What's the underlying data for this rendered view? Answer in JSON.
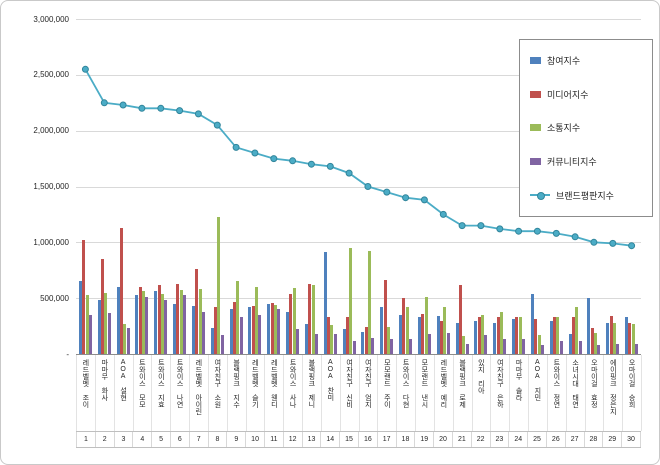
{
  "page": {
    "background": "#ffffff",
    "border_color": "#c9c9c9"
  },
  "chart_data": {
    "type": "bar",
    "title": "",
    "xlabel": "",
    "ylabel": "",
    "ylim": [
      0,
      3000000
    ],
    "ytick_interval": 500000,
    "ytick_labels": [
      "-",
      "500,000",
      "1,000,000",
      "1,500,000",
      "2,000,000",
      "2,500,000",
      "3,000,000"
    ],
    "grid": true,
    "legend_position": "top-right",
    "categories": [
      "레드벨벳 조이",
      "마마무 화사",
      "AOA 설현",
      "트와이스 모모",
      "트와이스 지효",
      "트와이스 나연",
      "레드벨벳 아이린",
      "여자친구 소원",
      "블랙핑크 지수",
      "레드벨벳 슬기",
      "레드벨벳 웬디",
      "트와이스 사나",
      "블랙핑크 제니",
      "AOA 찬미",
      "여자친구 신비",
      "여자친구 엄지",
      "모모랜드 주이",
      "트와이스 다현",
      "모모랜드 낸시",
      "레드벨벳 예리",
      "블랙핑크 로제",
      "있지 리아",
      "여자친구 은하",
      "마마무 솔라",
      "AOA 지민",
      "트와이스 정연",
      "소녀시대 태연",
      "오마이걸 효정",
      "에이핑크 정은지",
      "오마이걸 승희"
    ],
    "ranks": [
      "1",
      "2",
      "3",
      "4",
      "5",
      "6",
      "7",
      "8",
      "9",
      "10",
      "11",
      "12",
      "13",
      "14",
      "15",
      "16",
      "17",
      "18",
      "19",
      "20",
      "21",
      "22",
      "23",
      "24",
      "25",
      "26",
      "27",
      "28",
      "29",
      "30"
    ],
    "series": [
      {
        "name": "참여지수",
        "type": "bar",
        "color": "#4F81BD",
        "values": [
          650000,
          480000,
          600000,
          530000,
          560000,
          450000,
          430000,
          230000,
          400000,
          420000,
          450000,
          380000,
          270000,
          910000,
          220000,
          200000,
          420000,
          350000,
          330000,
          340000,
          280000,
          300000,
          280000,
          310000,
          540000,
          300000,
          180000,
          500000,
          280000,
          330000
        ]
      },
      {
        "name": "미디어지수",
        "type": "bar",
        "color": "#C0504D",
        "values": [
          1020000,
          850000,
          1130000,
          600000,
          620000,
          630000,
          760000,
          420000,
          470000,
          430000,
          460000,
          540000,
          630000,
          330000,
          330000,
          240000,
          660000,
          500000,
          360000,
          300000,
          620000,
          330000,
          330000,
          330000,
          310000,
          330000,
          330000,
          230000,
          340000,
          280000
        ]
      },
      {
        "name": "소통지수",
        "type": "bar",
        "color": "#9BBB59",
        "values": [
          530000,
          550000,
          270000,
          560000,
          540000,
          570000,
          580000,
          1230000,
          650000,
          600000,
          440000,
          590000,
          620000,
          260000,
          950000,
          920000,
          240000,
          420000,
          510000,
          420000,
          160000,
          350000,
          380000,
          330000,
          170000,
          330000,
          420000,
          190000,
          280000,
          270000
        ]
      },
      {
        "name": "커뮤니티지수",
        "type": "bar",
        "color": "#8064A2",
        "values": [
          350000,
          370000,
          230000,
          510000,
          480000,
          530000,
          380000,
          170000,
          330000,
          350000,
          400000,
          220000,
          180000,
          180000,
          120000,
          140000,
          130000,
          130000,
          180000,
          190000,
          90000,
          170000,
          130000,
          130000,
          80000,
          120000,
          120000,
          80000,
          90000,
          90000
        ]
      },
      {
        "name": "브랜드평판지수",
        "type": "line",
        "color": "#4BACC6",
        "marker_stroke": "#31859B",
        "values": [
          2550000,
          2250000,
          2230000,
          2200000,
          2200000,
          2180000,
          2150000,
          2050000,
          1850000,
          1800000,
          1750000,
          1730000,
          1700000,
          1680000,
          1620000,
          1500000,
          1450000,
          1400000,
          1380000,
          1250000,
          1150000,
          1150000,
          1120000,
          1100000,
          1100000,
          1080000,
          1050000,
          1000000,
          990000,
          970000
        ]
      }
    ]
  }
}
